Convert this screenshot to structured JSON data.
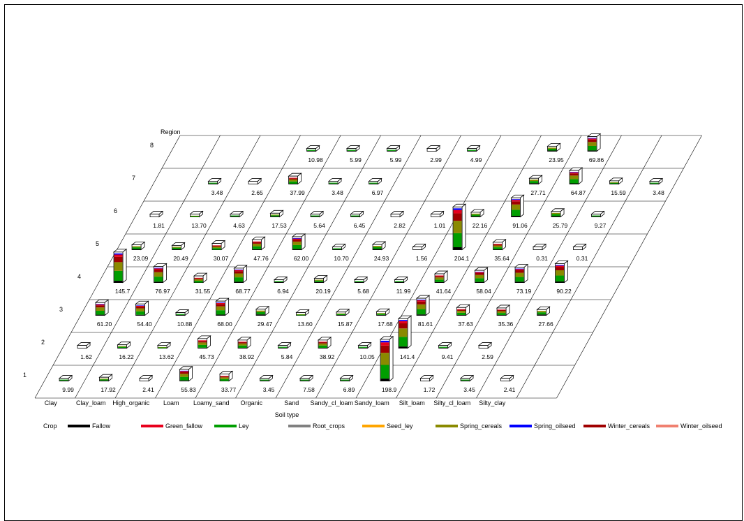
{
  "chart_data": {
    "type": "bar",
    "subtype": "3d-stacked-bar-grid",
    "y_axis_title": "Region",
    "x_axis_title": "Soil type",
    "legend_title": "Crop",
    "legend_placement": "bottom",
    "soil_types": [
      "Clay",
      "Clay_loam",
      "High_organic",
      "Loam",
      "Loamy_sand",
      "Organic",
      "Sand",
      "Sandy_cl_loam",
      "Sandy_loam",
      "Silt_loam",
      "Silty_cl_loam",
      "Silty_clay"
    ],
    "regions": [
      "1",
      "2",
      "3",
      "4",
      "5",
      "6",
      "7",
      "8"
    ],
    "crops": [
      {
        "name": "Fallow",
        "color": "#000000"
      },
      {
        "name": "Green_fallow",
        "color": "#e8001c"
      },
      {
        "name": "Ley",
        "color": "#009e00"
      },
      {
        "name": "Root_crops",
        "color": "#808080"
      },
      {
        "name": "Seed_ley",
        "color": "#ffa500"
      },
      {
        "name": "Spring_cereals",
        "color": "#8a8a00"
      },
      {
        "name": "Spring_oilseed",
        "color": "#0000ff"
      },
      {
        "name": "Winter_cereals",
        "color": "#a00000"
      },
      {
        "name": "Winter_oilseed",
        "color": "#f08070"
      }
    ],
    "cells": [
      {
        "region": "1",
        "col": 0,
        "label": "9.99",
        "value": 9.99
      },
      {
        "region": "1",
        "col": 1,
        "label": "17.92",
        "value": 17.92
      },
      {
        "region": "1",
        "col": 2,
        "label": "2.41",
        "value": 2.41
      },
      {
        "region": "1",
        "col": 3,
        "label": "55.83",
        "value": 55.83
      },
      {
        "region": "1",
        "col": 4,
        "label": "33.77",
        "value": 33.77
      },
      {
        "region": "1",
        "col": 5,
        "label": "3.45",
        "value": 3.45
      },
      {
        "region": "1",
        "col": 6,
        "label": "7.58",
        "value": 7.58
      },
      {
        "region": "1",
        "col": 7,
        "label": "6.89",
        "value": 6.89
      },
      {
        "region": "1",
        "col": 8,
        "label": "198.9",
        "value": 198.9
      },
      {
        "region": "1",
        "col": 9,
        "label": "1.72",
        "value": 1.72
      },
      {
        "region": "1",
        "col": 10,
        "label": "3.45",
        "value": 3.45
      },
      {
        "region": "1",
        "col": 11,
        "label": "2.41",
        "value": 2.41
      },
      {
        "region": "2",
        "col": 0,
        "label": "1.62",
        "value": 1.62
      },
      {
        "region": "2",
        "col": 1,
        "label": "16.22",
        "value": 16.22
      },
      {
        "region": "2",
        "col": 2,
        "label": "13.62",
        "value": 13.62
      },
      {
        "region": "2",
        "col": 3,
        "label": "45.73",
        "value": 45.73
      },
      {
        "region": "2",
        "col": 4,
        "label": "38.92",
        "value": 38.92
      },
      {
        "region": "2",
        "col": 5,
        "label": "5.84",
        "value": 5.84
      },
      {
        "region": "2",
        "col": 6,
        "label": "38.92",
        "value": 38.92
      },
      {
        "region": "2",
        "col": 7,
        "label": "10.05",
        "value": 10.05
      },
      {
        "region": "2",
        "col": 8,
        "label": "141.4",
        "value": 141.4
      },
      {
        "region": "2",
        "col": 9,
        "label": "9.41",
        "value": 9.41
      },
      {
        "region": "2",
        "col": 10,
        "label": "2.59",
        "value": 2.59
      },
      {
        "region": "3",
        "col": 0,
        "label": "61.20",
        "value": 61.2
      },
      {
        "region": "3",
        "col": 1,
        "label": "54.40",
        "value": 54.4
      },
      {
        "region": "3",
        "col": 2,
        "label": "10.88",
        "value": 10.88
      },
      {
        "region": "3",
        "col": 3,
        "label": "68.00",
        "value": 68.0
      },
      {
        "region": "3",
        "col": 4,
        "label": "29.47",
        "value": 29.47
      },
      {
        "region": "3",
        "col": 5,
        "label": "13.60",
        "value": 13.6
      },
      {
        "region": "3",
        "col": 6,
        "label": "15.87",
        "value": 15.87
      },
      {
        "region": "3",
        "col": 7,
        "label": "17.68",
        "value": 17.68
      },
      {
        "region": "3",
        "col": 8,
        "label": "81.61",
        "value": 81.61
      },
      {
        "region": "3",
        "col": 9,
        "label": "37.63",
        "value": 37.63
      },
      {
        "region": "3",
        "col": 10,
        "label": "35.36",
        "value": 35.36
      },
      {
        "region": "3",
        "col": 11,
        "label": "27.66",
        "value": 27.66
      },
      {
        "region": "4",
        "col": 0,
        "label": "145.7",
        "value": 145.7
      },
      {
        "region": "4",
        "col": 1,
        "label": "76.97",
        "value": 76.97
      },
      {
        "region": "4",
        "col": 2,
        "label": "31.55",
        "value": 31.55
      },
      {
        "region": "4",
        "col": 3,
        "label": "68.77",
        "value": 68.77
      },
      {
        "region": "4",
        "col": 4,
        "label": "6.94",
        "value": 6.94
      },
      {
        "region": "4",
        "col": 5,
        "label": "20.19",
        "value": 20.19
      },
      {
        "region": "4",
        "col": 6,
        "label": "5.68",
        "value": 5.68
      },
      {
        "region": "4",
        "col": 7,
        "label": "11.99",
        "value": 11.99
      },
      {
        "region": "4",
        "col": 8,
        "label": "41.64",
        "value": 41.64
      },
      {
        "region": "4",
        "col": 9,
        "label": "58.04",
        "value": 58.04
      },
      {
        "region": "4",
        "col": 10,
        "label": "73.19",
        "value": 73.19
      },
      {
        "region": "4",
        "col": 11,
        "label": "90.22",
        "value": 90.22
      },
      {
        "region": "5",
        "col": 0,
        "label": "23.09",
        "value": 23.09
      },
      {
        "region": "5",
        "col": 1,
        "label": "20.49",
        "value": 20.49
      },
      {
        "region": "5",
        "col": 2,
        "label": "30.07",
        "value": 30.07
      },
      {
        "region": "5",
        "col": 3,
        "label": "47.76",
        "value": 47.76
      },
      {
        "region": "5",
        "col": 4,
        "label": "62.00",
        "value": 62.0
      },
      {
        "region": "5",
        "col": 5,
        "label": "10.70",
        "value": 10.7
      },
      {
        "region": "5",
        "col": 6,
        "label": "24.93",
        "value": 24.93
      },
      {
        "region": "5",
        "col": 7,
        "label": "1.56",
        "value": 1.56
      },
      {
        "region": "5",
        "col": 8,
        "label": "204.1",
        "value": 204.1
      },
      {
        "region": "5",
        "col": 9,
        "label": "35.64",
        "value": 35.64
      },
      {
        "region": "5",
        "col": 10,
        "label": "0.31",
        "value": 0.31
      },
      {
        "region": "5",
        "col": 11,
        "label": "0.31",
        "value": 0.31
      },
      {
        "region": "6",
        "col": 0,
        "label": "1.81",
        "value": 1.81
      },
      {
        "region": "6",
        "col": 1,
        "label": "13.70",
        "value": 13.7
      },
      {
        "region": "6",
        "col": 2,
        "label": "4.63",
        "value": 4.63
      },
      {
        "region": "6",
        "col": 3,
        "label": "17.53",
        "value": 17.53
      },
      {
        "region": "6",
        "col": 4,
        "label": "5.64",
        "value": 5.64
      },
      {
        "region": "6",
        "col": 5,
        "label": "6.45",
        "value": 6.45
      },
      {
        "region": "6",
        "col": 6,
        "label": "2.82",
        "value": 2.82
      },
      {
        "region": "6",
        "col": 7,
        "label": "1.01",
        "value": 1.01
      },
      {
        "region": "6",
        "col": 8,
        "label": "22.16",
        "value": 22.16
      },
      {
        "region": "6",
        "col": 9,
        "label": "91.06",
        "value": 91.06
      },
      {
        "region": "6",
        "col": 10,
        "label": "25.79",
        "value": 25.79
      },
      {
        "region": "6",
        "col": 11,
        "label": "9.27",
        "value": 9.27
      },
      {
        "region": "7",
        "col": 1,
        "label": "3.48",
        "value": 3.48
      },
      {
        "region": "7",
        "col": 2,
        "label": "2.65",
        "value": 2.65
      },
      {
        "region": "7",
        "col": 3,
        "label": "37.99",
        "value": 37.99
      },
      {
        "region": "7",
        "col": 4,
        "label": "3.48",
        "value": 3.48
      },
      {
        "region": "7",
        "col": 5,
        "label": "6.97",
        "value": 6.97
      },
      {
        "region": "7",
        "col": 9,
        "label": "27.71",
        "value": 27.71
      },
      {
        "region": "7",
        "col": 10,
        "label": "64.87",
        "value": 64.87
      },
      {
        "region": "7",
        "col": 11,
        "label": "15.59",
        "value": 15.59
      },
      {
        "region": "7",
        "col": 12,
        "label": "3.48",
        "value": 3.48
      },
      {
        "region": "8",
        "col": 3,
        "label": "10.98",
        "value": 10.98
      },
      {
        "region": "8",
        "col": 4,
        "label": "5.99",
        "value": 5.99
      },
      {
        "region": "8",
        "col": 5,
        "label": "5.99",
        "value": 5.99
      },
      {
        "region": "8",
        "col": 6,
        "label": "2.99",
        "value": 2.99
      },
      {
        "region": "8",
        "col": 7,
        "label": "4.99",
        "value": 4.99
      },
      {
        "region": "8",
        "col": 9,
        "label": "23.95",
        "value": 23.95
      },
      {
        "region": "8",
        "col": 10,
        "label": "69.86",
        "value": 69.86
      }
    ],
    "grid": true
  }
}
